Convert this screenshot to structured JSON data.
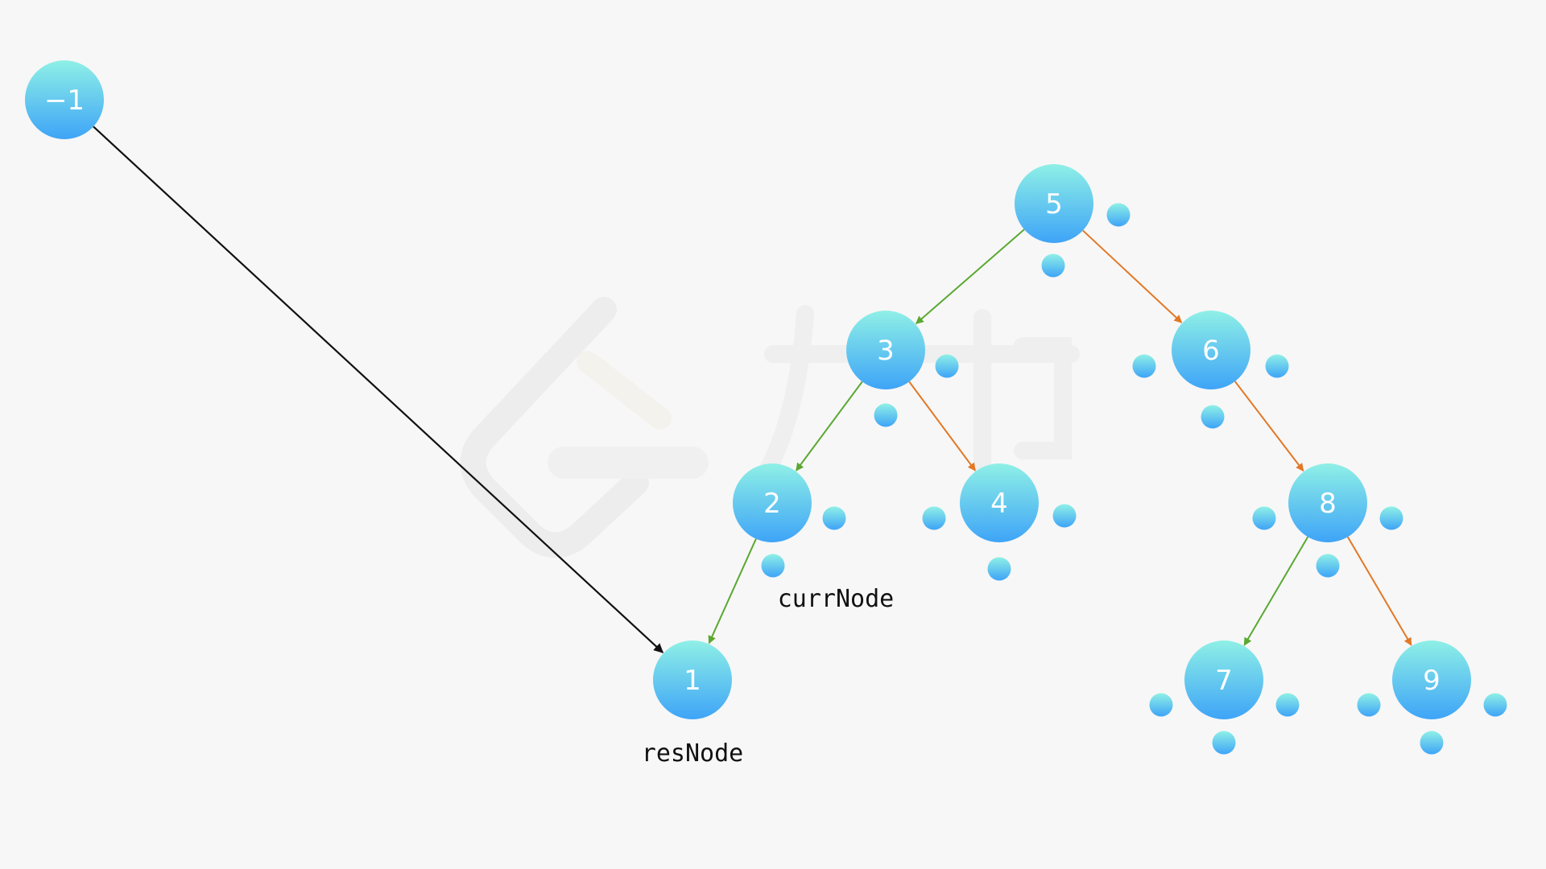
{
  "colors": {
    "background": "#f7f7f7",
    "node_top": "#8ff0e6",
    "node_bottom": "#3ea4f7",
    "left_edge": "#5aa832",
    "right_edge": "#e27826",
    "pointer_edge": "#111111",
    "label": "#111111"
  },
  "nodes": [
    {
      "id": "n-1",
      "label": "−1"
    },
    {
      "id": "n5",
      "label": "5"
    },
    {
      "id": "n3",
      "label": "3"
    },
    {
      "id": "n6",
      "label": "6"
    },
    {
      "id": "n2",
      "label": "2"
    },
    {
      "id": "n4",
      "label": "4"
    },
    {
      "id": "n8",
      "label": "8"
    },
    {
      "id": "n1",
      "label": "1"
    },
    {
      "id": "n7",
      "label": "7"
    },
    {
      "id": "n9",
      "label": "9"
    }
  ],
  "edges": [
    {
      "from": "n5",
      "to": "n3",
      "kind": "left"
    },
    {
      "from": "n5",
      "to": "n6",
      "kind": "right"
    },
    {
      "from": "n3",
      "to": "n2",
      "kind": "left"
    },
    {
      "from": "n3",
      "to": "n4",
      "kind": "right"
    },
    {
      "from": "n6",
      "to": "n8",
      "kind": "right"
    },
    {
      "from": "n2",
      "to": "n1",
      "kind": "left"
    },
    {
      "from": "n8",
      "to": "n7",
      "kind": "left"
    },
    {
      "from": "n8",
      "to": "n9",
      "kind": "right"
    },
    {
      "from": "n-1",
      "to": "n1",
      "kind": "pointer"
    }
  ],
  "labels": {
    "curr_node": "currNode",
    "res_node": "resNode"
  }
}
